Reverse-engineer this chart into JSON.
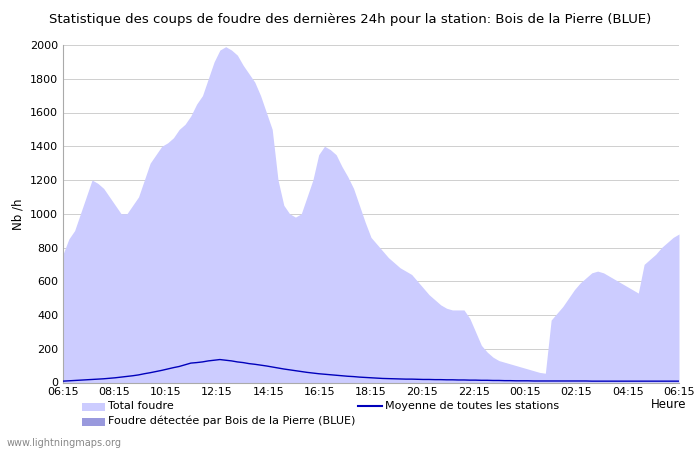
{
  "title": "Statistique des coups de foudre des dernières 24h pour la station: Bois de la Pierre (BLUE)",
  "ylabel": "Nb /h",
  "xlabel_right": "Heure",
  "ylim": [
    0,
    2000
  ],
  "yticks": [
    0,
    200,
    400,
    600,
    800,
    1000,
    1200,
    1400,
    1600,
    1800,
    2000
  ],
  "xtick_labels": [
    "06:15",
    "08:15",
    "10:15",
    "12:15",
    "14:15",
    "16:15",
    "18:15",
    "20:15",
    "22:15",
    "00:15",
    "02:15",
    "04:15",
    "06:15"
  ],
  "background_color": "#ffffff",
  "plot_bg_color": "#ffffff",
  "grid_color": "#c8c8c8",
  "fill_total_color": "#ccccff",
  "fill_local_color": "#9999dd",
  "line_color": "#0000bb",
  "watermark": "www.lightningmaps.org",
  "legend_total": "Total foudre",
  "legend_avg": "Moyenne de toutes les stations",
  "legend_local": "Foudre détectée par Bois de la Pierre (BLUE)",
  "title_fontsize": 9.5,
  "total_foudre": [
    760,
    850,
    900,
    1000,
    1100,
    1200,
    1180,
    1150,
    1100,
    1050,
    1000,
    1000,
    1050,
    1100,
    1200,
    1300,
    1350,
    1400,
    1420,
    1450,
    1500,
    1530,
    1580,
    1650,
    1700,
    1800,
    1900,
    1970,
    1990,
    1970,
    1940,
    1880,
    1830,
    1780,
    1700,
    1600,
    1500,
    1200,
    1050,
    1000,
    980,
    1000,
    1100,
    1200,
    1350,
    1400,
    1380,
    1350,
    1280,
    1220,
    1150,
    1050,
    950,
    860,
    820,
    780,
    740,
    710,
    680,
    660,
    640,
    600,
    560,
    520,
    490,
    460,
    440,
    430,
    430,
    430,
    380,
    300,
    220,
    180,
    150,
    130,
    120,
    110,
    100,
    90,
    80,
    70,
    60,
    55,
    370,
    410,
    450,
    500,
    550,
    590,
    620,
    650,
    660,
    650,
    630,
    610,
    590,
    570,
    550,
    530,
    700,
    730,
    760,
    800,
    830,
    860,
    880
  ],
  "local_foudre": [
    0,
    0,
    0,
    0,
    0,
    0,
    0,
    0,
    0,
    0,
    0,
    0,
    0,
    0,
    0,
    0,
    0,
    0,
    0,
    0,
    0,
    0,
    0,
    0,
    0,
    0,
    0,
    0,
    0,
    0,
    0,
    0,
    0,
    0,
    0,
    0,
    0,
    0,
    0,
    0,
    0,
    0,
    0,
    0,
    0,
    0,
    0,
    0,
    0,
    0,
    0,
    0,
    0,
    0,
    0,
    0,
    0,
    0,
    0,
    0,
    0,
    0,
    0,
    0,
    0,
    0,
    0,
    0,
    0,
    0,
    0,
    0,
    0,
    0,
    0,
    0,
    0,
    0,
    0,
    0,
    0,
    0,
    0,
    0,
    0,
    0,
    0,
    0,
    0,
    0,
    0,
    0,
    0,
    0,
    0,
    0,
    0,
    0,
    0,
    0,
    0,
    0,
    0,
    0,
    0,
    0,
    0
  ],
  "avg_line": [
    8,
    10,
    12,
    14,
    16,
    18,
    20,
    22,
    25,
    28,
    32,
    36,
    40,
    45,
    52,
    58,
    65,
    72,
    80,
    88,
    95,
    105,
    115,
    118,
    122,
    128,
    132,
    136,
    132,
    128,
    122,
    118,
    112,
    108,
    103,
    98,
    92,
    86,
    80,
    75,
    70,
    65,
    60,
    56,
    52,
    49,
    46,
    43,
    40,
    37,
    35,
    32,
    30,
    28,
    26,
    24,
    23,
    22,
    21,
    20,
    20,
    19,
    18,
    18,
    17,
    17,
    16,
    16,
    15,
    15,
    14,
    14,
    13,
    13,
    12,
    12,
    11,
    11,
    10,
    10,
    10,
    9,
    9,
    9,
    9,
    9,
    9,
    9,
    9,
    9,
    9,
    8,
    8,
    8,
    8,
    8,
    8,
    8,
    8,
    8,
    8,
    8,
    8,
    8,
    8,
    8,
    8
  ]
}
